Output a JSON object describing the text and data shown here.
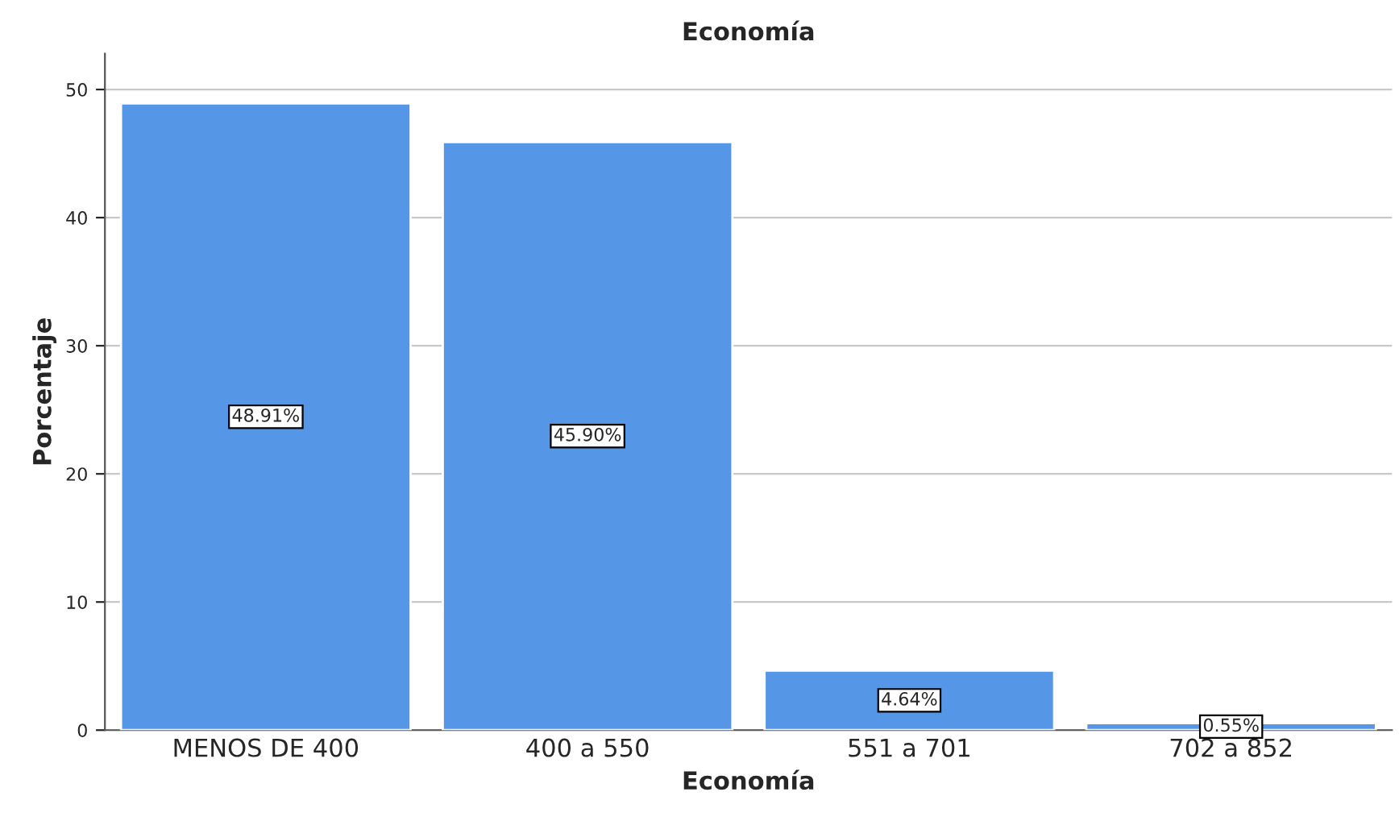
{
  "chart_data": {
    "type": "bar",
    "title": "Economía",
    "xlabel": "Economía",
    "ylabel": "Porcentaje",
    "categories": [
      "MENOS DE 400",
      "400 a 550",
      "551 a 701",
      "702 a 852"
    ],
    "values": [
      48.91,
      45.9,
      4.64,
      0.55
    ],
    "value_labels": [
      "48.91%",
      "45.90%",
      "4.64%",
      "0.55%"
    ],
    "color": "#5596e6",
    "ylim": [
      0,
      52.8
    ],
    "yticks": [
      0,
      10,
      20,
      30,
      40,
      50
    ],
    "grid": "y"
  }
}
